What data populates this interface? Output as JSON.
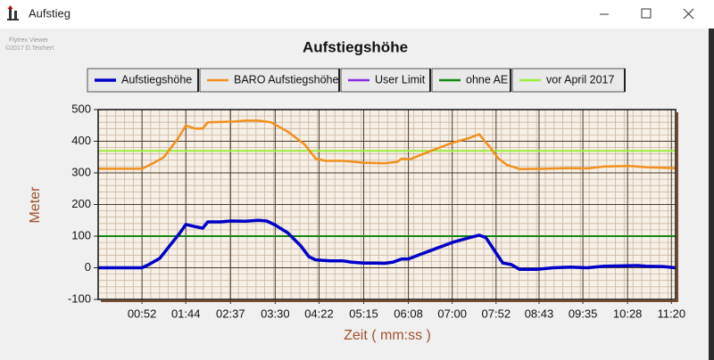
{
  "window": {
    "title": "Aufstieg"
  },
  "watermark": [
    "Flytrex Viewer",
    "©2017 D.Teichert"
  ],
  "chart_data": {
    "type": "line",
    "title": "Aufstiegshöhe",
    "x_label": "Zeit ( mm:ss )",
    "y_label": "Meter",
    "xlim": [
      0,
      685
    ],
    "ylim": [
      -100,
      500
    ],
    "xticks": [
      {
        "value": 52,
        "label": "00:52"
      },
      {
        "value": 104,
        "label": "01:44"
      },
      {
        "value": 157,
        "label": "02:37"
      },
      {
        "value": 210,
        "label": "03:30"
      },
      {
        "value": 262,
        "label": "04:22"
      },
      {
        "value": 315,
        "label": "05:15"
      },
      {
        "value": 368,
        "label": "06:08"
      },
      {
        "value": 420,
        "label": "07:00"
      },
      {
        "value": 472,
        "label": "07:52"
      },
      {
        "value": 523,
        "label": "08:43"
      },
      {
        "value": 575,
        "label": "09:35"
      },
      {
        "value": 628,
        "label": "10:28"
      },
      {
        "value": 680,
        "label": "11:20"
      }
    ],
    "yticks": [
      -100,
      0,
      100,
      200,
      300,
      400,
      500
    ],
    "grid": true,
    "minor_grid": true,
    "series": [
      {
        "name": "Aufstiegshöhe",
        "color": "#0000c8",
        "width": 3.5,
        "x": [
          0,
          30,
          52,
          60,
          73,
          85,
          97,
          104,
          115,
          124,
          130,
          145,
          157,
          175,
          190,
          200,
          210,
          225,
          240,
          250,
          258,
          275,
          290,
          300,
          315,
          330,
          340,
          350,
          360,
          368,
          380,
          400,
          420,
          440,
          452,
          460,
          470,
          480,
          490,
          500,
          520,
          540,
          560,
          580,
          600,
          620,
          640,
          650,
          670,
          685
        ],
        "values": [
          0,
          0,
          0,
          10,
          30,
          70,
          110,
          137,
          130,
          125,
          145,
          145,
          148,
          147,
          150,
          148,
          135,
          110,
          70,
          35,
          25,
          22,
          22,
          18,
          15,
          15,
          14,
          18,
          28,
          28,
          40,
          60,
          80,
          95,
          103,
          95,
          55,
          15,
          10,
          -5,
          -5,
          0,
          2,
          0,
          5,
          6,
          7,
          5,
          4,
          0
        ]
      },
      {
        "name": "BARO Aufstiegshöhe",
        "color": "#f0901e",
        "width": 2.5,
        "x": [
          0,
          52,
          65,
          78,
          95,
          104,
          115,
          124,
          130,
          160,
          175,
          190,
          205,
          225,
          245,
          258,
          270,
          290,
          300,
          315,
          340,
          355,
          360,
          370,
          400,
          420,
          440,
          452,
          465,
          475,
          485,
          500,
          530,
          560,
          580,
          600,
          630,
          650,
          685
        ],
        "values": [
          313,
          313,
          330,
          350,
          410,
          450,
          440,
          440,
          460,
          462,
          465,
          465,
          460,
          430,
          390,
          345,
          338,
          338,
          336,
          332,
          330,
          335,
          345,
          343,
          375,
          395,
          410,
          422,
          380,
          345,
          325,
          312,
          313,
          315,
          314,
          320,
          322,
          318,
          315
        ]
      },
      {
        "name": "User Limit",
        "color": "#8a2be2",
        "width": 2,
        "x": [],
        "values": []
      },
      {
        "name": "ohne AE",
        "color": "#118a11",
        "width": 2,
        "x": [
          0,
          685
        ],
        "values": [
          100,
          100
        ]
      },
      {
        "name": "vor April 2017",
        "color": "#9aee3c",
        "width": 2,
        "x": [
          0,
          685
        ],
        "values": [
          370,
          370
        ]
      }
    ]
  }
}
